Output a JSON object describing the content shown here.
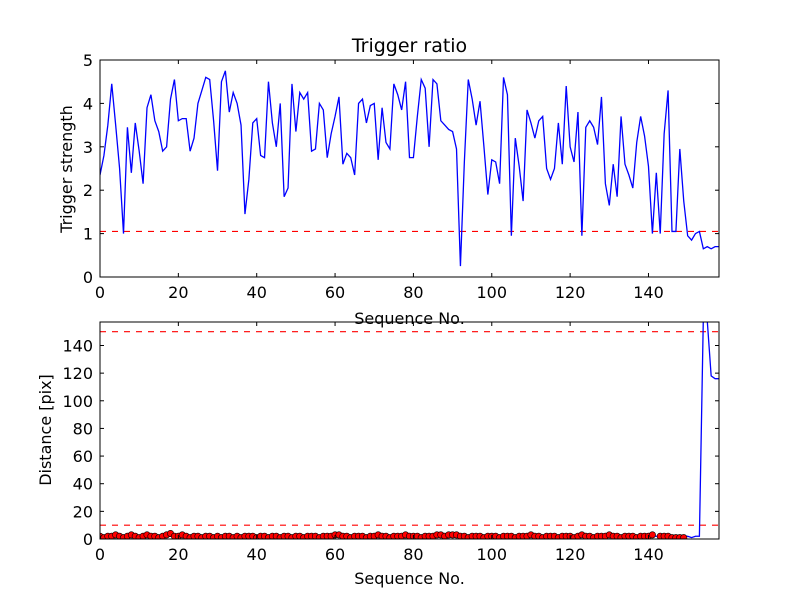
{
  "chart_data": [
    {
      "type": "line",
      "title": "Trigger ratio",
      "xlabel": "Sequence No.",
      "ylabel": "Trigger strength",
      "xlim": [
        0,
        158
      ],
      "ylim": [
        0,
        5
      ],
      "xticks": [
        0,
        20,
        40,
        60,
        80,
        100,
        120,
        140
      ],
      "yticks": [
        0,
        1,
        2,
        3,
        4,
        5
      ],
      "grid": false,
      "colors": {
        "line": "#0000ff",
        "threshold": "#ff0000"
      },
      "threshold": 1.05,
      "series": [
        {
          "x": [
            0,
            1,
            2,
            3,
            4,
            5,
            6,
            7,
            8,
            9,
            10,
            11,
            12,
            13,
            14,
            15,
            16,
            17,
            18,
            19,
            20,
            21,
            22,
            23,
            24,
            25,
            26,
            27,
            28,
            29,
            30,
            31,
            32,
            33,
            34,
            35,
            36,
            37,
            38,
            39,
            40,
            41,
            42,
            43,
            44,
            45,
            46,
            47,
            48,
            49,
            50,
            51,
            52,
            53,
            54,
            55,
            56,
            57,
            58,
            59,
            60,
            61,
            62,
            63,
            64,
            65,
            66,
            67,
            68,
            69,
            70,
            71,
            72,
            73,
            74,
            75,
            76,
            77,
            78,
            79,
            80,
            81,
            82,
            83,
            84,
            85,
            86,
            87,
            88,
            89,
            90,
            91,
            92,
            93,
            94,
            95,
            96,
            97,
            98,
            99,
            100,
            101,
            102,
            103,
            104,
            105,
            106,
            107,
            108,
            109,
            110,
            111,
            112,
            113,
            114,
            115,
            116,
            117,
            118,
            119,
            120,
            121,
            122,
            123,
            124,
            125,
            126,
            127,
            128,
            129,
            130,
            131,
            132,
            133,
            134,
            135,
            136,
            137,
            138,
            139,
            140,
            141,
            142,
            143,
            144,
            145,
            146,
            147,
            148,
            149,
            150,
            151,
            152,
            153,
            154,
            155,
            156,
            157,
            158
          ],
          "values": [
            2.35,
            2.8,
            3.5,
            4.45,
            3.5,
            2.5,
            1.0,
            3.45,
            2.4,
            3.55,
            2.9,
            2.15,
            3.9,
            4.2,
            3.6,
            3.35,
            2.9,
            3.0,
            4.1,
            4.55,
            3.6,
            3.65,
            3.65,
            2.9,
            3.2,
            4.0,
            4.3,
            4.6,
            4.55,
            3.6,
            2.45,
            4.5,
            4.75,
            3.8,
            4.25,
            4.0,
            3.5,
            1.45,
            2.25,
            3.55,
            3.65,
            2.8,
            2.75,
            4.5,
            3.55,
            3.0,
            4.0,
            1.85,
            2.05,
            4.45,
            3.35,
            4.25,
            4.1,
            4.25,
            2.9,
            2.95,
            4.0,
            3.85,
            2.75,
            3.3,
            3.7,
            4.15,
            2.6,
            2.85,
            2.75,
            2.35,
            4.0,
            4.1,
            3.55,
            3.95,
            4.0,
            2.7,
            3.9,
            3.1,
            2.95,
            4.45,
            4.2,
            3.85,
            4.5,
            2.75,
            2.75,
            3.7,
            4.55,
            4.35,
            3.0,
            4.55,
            4.45,
            3.6,
            3.5,
            3.4,
            3.35,
            2.95,
            0.25,
            2.65,
            4.55,
            4.1,
            3.5,
            4.05,
            3.0,
            1.9,
            2.7,
            2.65,
            2.15,
            4.6,
            4.2,
            0.95,
            3.2,
            2.55,
            1.75,
            3.85,
            3.55,
            3.2,
            3.6,
            3.7,
            2.5,
            2.25,
            2.5,
            3.55,
            2.6,
            4.4,
            3.0,
            2.65,
            3.8,
            0.95,
            3.45,
            3.6,
            3.45,
            3.05,
            4.15,
            2.15,
            1.65,
            2.6,
            1.85,
            3.7,
            2.6,
            2.35,
            2.05,
            3.1,
            3.7,
            3.25,
            2.55,
            1.0,
            2.4,
            1.0,
            3.3,
            4.3,
            1.05,
            1.05,
            2.95,
            1.75,
            0.95,
            0.85,
            1.0,
            1.05,
            0.65,
            0.7,
            0.65,
            0.7,
            0.7
          ]
        }
      ]
    },
    {
      "type": "line",
      "title": "",
      "xlabel": "Sequence No.",
      "ylabel": "Distance [pix]",
      "xlim": [
        0,
        158
      ],
      "ylim": [
        0,
        157
      ],
      "xticks": [
        0,
        20,
        40,
        60,
        80,
        100,
        120,
        140
      ],
      "yticks": [
        0,
        20,
        40,
        60,
        80,
        100,
        120,
        140
      ],
      "grid": false,
      "colors": {
        "line": "#0000ff",
        "marker": "#ff0000",
        "threshold": "#ff0000"
      },
      "thresholds": [
        10,
        150
      ],
      "series": [
        {
          "x": [
            0,
            10,
            20,
            30,
            40,
            50,
            60,
            70,
            80,
            90,
            100,
            110,
            120,
            130,
            140,
            150,
            151,
            152,
            153,
            154,
            155,
            156,
            157,
            158
          ],
          "values": [
            2,
            2,
            2,
            2,
            2,
            2,
            2,
            2,
            2,
            2,
            2,
            2,
            2,
            2,
            2,
            2,
            1,
            2,
            2,
            160,
            158,
            118,
            116,
            116
          ]
        },
        {
          "x": [
            0,
            1,
            2,
            3,
            4,
            5,
            6,
            7,
            8,
            9,
            10,
            11,
            12,
            13,
            14,
            15,
            16,
            17,
            18,
            19,
            20,
            21,
            22,
            23,
            24,
            25,
            26,
            27,
            28,
            29,
            30,
            31,
            32,
            33,
            34,
            35,
            36,
            37,
            38,
            39,
            40,
            41,
            42,
            43,
            44,
            45,
            46,
            47,
            48,
            49,
            50,
            51,
            52,
            53,
            54,
            55,
            56,
            57,
            58,
            59,
            60,
            61,
            62,
            63,
            64,
            65,
            66,
            67,
            68,
            69,
            70,
            71,
            72,
            73,
            74,
            75,
            76,
            77,
            78,
            79,
            80,
            81,
            82,
            83,
            84,
            85,
            86,
            87,
            88,
            89,
            90,
            91,
            92,
            93,
            94,
            95,
            96,
            97,
            98,
            99,
            100,
            101,
            102,
            103,
            104,
            105,
            106,
            107,
            108,
            109,
            110,
            111,
            112,
            113,
            114,
            115,
            116,
            117,
            118,
            119,
            120,
            121,
            122,
            123,
            124,
            125,
            126,
            127,
            128,
            129,
            130,
            131,
            132,
            133,
            134,
            135,
            136,
            137,
            138,
            139,
            140,
            141,
            143,
            144,
            145,
            146,
            147,
            148,
            149
          ],
          "values": [
            2,
            1,
            2,
            2,
            3,
            2,
            1,
            2,
            3,
            2,
            1,
            2,
            3,
            2,
            2,
            1,
            2,
            3,
            4,
            2,
            2,
            3,
            2,
            1,
            2,
            2,
            1,
            2,
            2,
            1,
            2,
            1,
            2,
            2,
            1,
            2,
            1,
            2,
            2,
            2,
            1,
            2,
            2,
            1,
            2,
            2,
            1,
            2,
            2,
            1,
            2,
            2,
            1,
            2,
            2,
            2,
            1,
            2,
            2,
            2,
            3,
            3,
            2,
            2,
            1,
            2,
            2,
            2,
            1,
            2,
            2,
            3,
            2,
            2,
            1,
            2,
            2,
            2,
            3,
            2,
            2,
            2,
            1,
            2,
            2,
            2,
            3,
            3,
            2,
            3,
            3,
            3,
            2,
            2,
            1,
            2,
            2,
            2,
            1,
            2,
            2,
            2,
            1,
            2,
            2,
            2,
            1,
            2,
            2,
            2,
            3,
            2,
            2,
            1,
            2,
            2,
            2,
            1,
            2,
            2,
            2,
            1,
            2,
            3,
            2,
            2,
            1,
            2,
            2,
            2,
            3,
            2,
            2,
            1,
            2,
            2,
            2,
            1,
            2,
            2,
            2,
            3,
            2,
            2,
            2,
            1,
            1,
            1,
            1
          ]
        }
      ]
    }
  ]
}
